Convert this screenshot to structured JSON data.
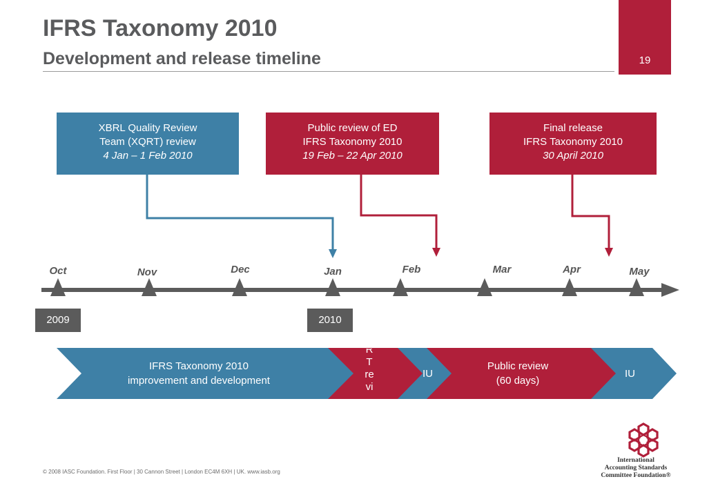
{
  "header": {
    "title": "IFRS Taxonomy 2010",
    "subtitle": "Development and release timeline",
    "page_number": "19"
  },
  "callouts": [
    {
      "line1": "XBRL Quality Review",
      "line2": "Team (XQRT) review",
      "line3": "4 Jan – 1 Feb 2010",
      "color": "#3e80a6"
    },
    {
      "line1": "Public review of ED",
      "line2": "IFRS Taxonomy 2010",
      "line3": "19 Feb – 22 Apr 2010",
      "color": "#b01f3a"
    },
    {
      "line1": "Final release",
      "line2": "IFRS Taxonomy 2010",
      "line3": "30 April 2010",
      "color": "#b01f3a"
    }
  ],
  "timeline": {
    "months": [
      "Oct",
      "Nov",
      "Dec",
      "Jan",
      "Feb",
      "Mar",
      "Apr",
      "May"
    ],
    "years": [
      "2009",
      "2010"
    ]
  },
  "phases": [
    {
      "line1": "IFRS Taxonomy 2010",
      "line2": "improvement and development",
      "color": "#3e80a6"
    },
    {
      "line1": "R",
      "line2": "T",
      "line3": "re",
      "line4": "vi",
      "color": "#b01f3a"
    },
    {
      "line1": "IU",
      "color": "#3e80a6"
    },
    {
      "line1": "Public review",
      "line2": "(60 days)",
      "color": "#b01f3a"
    },
    {
      "line1": "IU",
      "color": "#3e80a6"
    }
  ],
  "footer": {
    "copyright": "© 2008 IASC Foundation.  First Floor  |  30 Cannon Street  |  London EC4M 6XH  |  UK.  www.iasb.org"
  },
  "logo": {
    "org_line1": "International",
    "org_line2": "Accounting Standards",
    "org_line3": "Committee Foundation®",
    "color": "#b01f3a"
  }
}
